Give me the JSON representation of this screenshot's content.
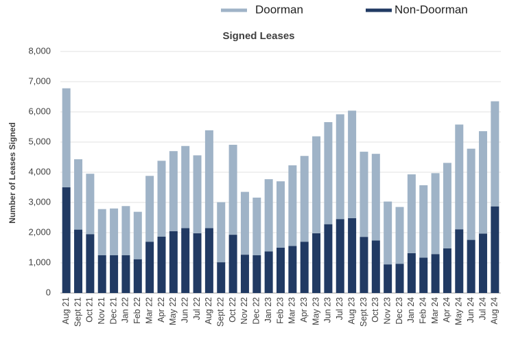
{
  "chart_data": {
    "type": "stacked_bar",
    "title": "Signed Leases",
    "y_label": "Number of Leases Signed",
    "categories": [
      "Aug 21",
      "Sept 21",
      "Oct 21",
      "Nov 21",
      "Dec 21",
      "Jan 22",
      "Feb 22",
      "Mar 22",
      "Apr 22",
      "May 22",
      "Jun 22",
      "Jul 22",
      "Aug 22",
      "Sept 22",
      "Oct 22",
      "Nov 22",
      "Dec 22",
      "Jan 23",
      "Feb 23",
      "Mar 23",
      "Apr 23",
      "May 23",
      "Jun 23",
      "Jul 23",
      "Aug 23",
      "Sept 23",
      "Oct 23",
      "Nov 23",
      "Dec 23",
      "Jan 24",
      "Feb 24",
      "Mar 24",
      "Apr 24",
      "May 24",
      "Jun 24",
      "Jul 24",
      "Aug 24"
    ],
    "series": [
      {
        "name": "Doorman",
        "color": "#9fb3c7",
        "values": [
          3280,
          2330,
          2000,
          1530,
          1550,
          1630,
          1570,
          2180,
          2510,
          2650,
          2720,
          2580,
          3240,
          1990,
          2980,
          2080,
          1910,
          2390,
          2200,
          2670,
          2840,
          3210,
          3380,
          3470,
          3560,
          2820,
          2870,
          2080,
          1880,
          2610,
          2400,
          2680,
          2830,
          3470,
          3020,
          3390,
          3480
        ]
      },
      {
        "name": "Non-Doorman",
        "color": "#213a63",
        "values": [
          3500,
          2100,
          1950,
          1250,
          1250,
          1250,
          1120,
          1700,
          1870,
          2050,
          2150,
          1980,
          2150,
          1020,
          1930,
          1270,
          1250,
          1380,
          1500,
          1560,
          1700,
          1980,
          2280,
          2450,
          2480,
          1860,
          1740,
          950,
          970,
          1320,
          1170,
          1290,
          1480,
          2110,
          1760,
          1970,
          2870
        ]
      }
    ],
    "ylim": [
      0,
      8000
    ],
    "yticks": [
      0,
      {
        "value": 1000,
        "label": "1,000"
      },
      {
        "value": 2000,
        "label": "2,000"
      },
      {
        "value": 3000,
        "label": "3,000"
      },
      {
        "value": 4000,
        "label": "4,000"
      },
      {
        "value": 5000,
        "label": "5,000"
      },
      {
        "value": 6000,
        "label": "6,000"
      },
      {
        "value": 7000,
        "label": "7,000"
      },
      {
        "value": 8000,
        "label": "8,000"
      }
    ],
    "grid": true
  }
}
